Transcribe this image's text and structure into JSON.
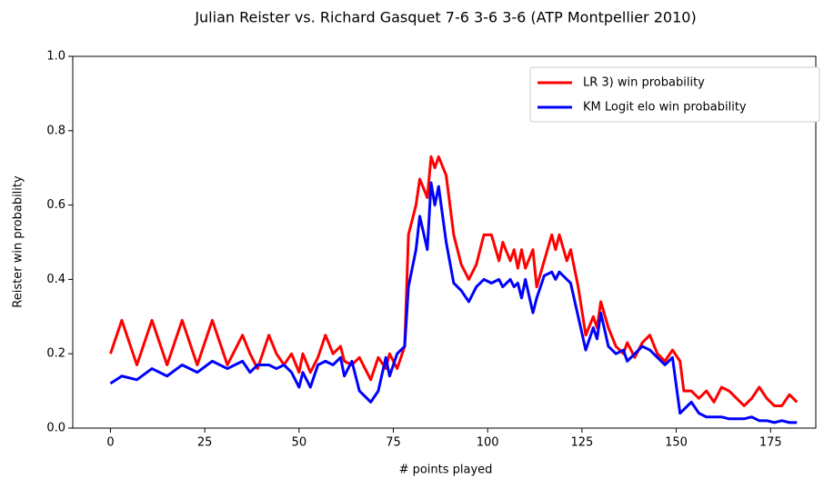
{
  "chart_data": {
    "type": "line",
    "title": "Julian Reister vs. Richard Gasquet 7-6 3-6 3-6 (ATP Montpellier 2010)",
    "xlabel": "# points played",
    "ylabel": "Reister win probability",
    "x": [
      0,
      3,
      7,
      11,
      15,
      19,
      23,
      27,
      31,
      35,
      37,
      39,
      42,
      44,
      46,
      48,
      50,
      51,
      53,
      55,
      57,
      59,
      61,
      62,
      64,
      66,
      69,
      71,
      73,
      74,
      76,
      78,
      79,
      81,
      82,
      84,
      85,
      86,
      87,
      89,
      91,
      93,
      95,
      97,
      99,
      101,
      103,
      104,
      106,
      107,
      108,
      109,
      110,
      112,
      113,
      115,
      117,
      118,
      119,
      121,
      122,
      124,
      126,
      128,
      129,
      130,
      132,
      134,
      136,
      137,
      139,
      141,
      143,
      145,
      147,
      149,
      151,
      152,
      154,
      156,
      158,
      160,
      162,
      164,
      166,
      168,
      170,
      172,
      174,
      176,
      178,
      180,
      182
    ],
    "series": [
      {
        "name": "LR 3) win probability",
        "color": "#ff0000",
        "values": [
          0.2,
          0.29,
          0.17,
          0.29,
          0.17,
          0.29,
          0.17,
          0.29,
          0.17,
          0.25,
          0.2,
          0.16,
          0.25,
          0.2,
          0.17,
          0.2,
          0.15,
          0.2,
          0.15,
          0.19,
          0.25,
          0.2,
          0.22,
          0.18,
          0.17,
          0.19,
          0.13,
          0.19,
          0.16,
          0.2,
          0.16,
          0.22,
          0.52,
          0.6,
          0.67,
          0.62,
          0.73,
          0.7,
          0.73,
          0.68,
          0.52,
          0.44,
          0.4,
          0.44,
          0.52,
          0.52,
          0.45,
          0.5,
          0.45,
          0.48,
          0.43,
          0.48,
          0.43,
          0.48,
          0.38,
          0.45,
          0.52,
          0.48,
          0.52,
          0.45,
          0.48,
          0.38,
          0.25,
          0.3,
          0.27,
          0.34,
          0.27,
          0.22,
          0.2,
          0.23,
          0.19,
          0.23,
          0.25,
          0.2,
          0.18,
          0.21,
          0.18,
          0.1,
          0.1,
          0.08,
          0.1,
          0.07,
          0.11,
          0.1,
          0.08,
          0.06,
          0.08,
          0.11,
          0.08,
          0.06,
          0.06,
          0.09,
          0.07
        ]
      },
      {
        "name": "KM Logit elo win probability",
        "color": "#0000ff",
        "values": [
          0.12,
          0.14,
          0.13,
          0.16,
          0.14,
          0.17,
          0.15,
          0.18,
          0.16,
          0.18,
          0.15,
          0.17,
          0.17,
          0.16,
          0.17,
          0.15,
          0.11,
          0.15,
          0.11,
          0.17,
          0.18,
          0.17,
          0.19,
          0.14,
          0.18,
          0.1,
          0.07,
          0.1,
          0.19,
          0.14,
          0.2,
          0.22,
          0.38,
          0.48,
          0.57,
          0.48,
          0.66,
          0.6,
          0.65,
          0.5,
          0.39,
          0.37,
          0.34,
          0.38,
          0.4,
          0.39,
          0.4,
          0.38,
          0.4,
          0.38,
          0.39,
          0.35,
          0.4,
          0.31,
          0.35,
          0.41,
          0.42,
          0.4,
          0.42,
          0.4,
          0.39,
          0.3,
          0.21,
          0.27,
          0.24,
          0.31,
          0.22,
          0.2,
          0.21,
          0.18,
          0.2,
          0.22,
          0.21,
          0.19,
          0.17,
          0.19,
          0.04,
          0.05,
          0.07,
          0.04,
          0.03,
          0.03,
          0.03,
          0.025,
          0.025,
          0.025,
          0.03,
          0.02,
          0.02,
          0.015,
          0.02,
          0.015,
          0.015
        ]
      }
    ],
    "xlim": [
      -10,
      187
    ],
    "xticks": [
      0,
      25,
      50,
      75,
      100,
      125,
      150,
      175
    ],
    "ylim": [
      0,
      1
    ],
    "yticks": [
      {
        "value": 0,
        "label": "0.0"
      },
      0.2,
      0.4,
      0.6,
      0.8,
      {
        "value": 1,
        "label": "1.0"
      }
    ],
    "grid": false,
    "legend": "upper right"
  }
}
